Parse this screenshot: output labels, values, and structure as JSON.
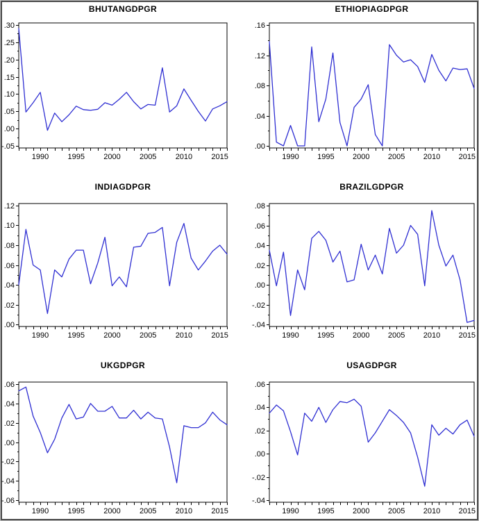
{
  "style": {
    "line_color": "#2e2ed2",
    "frame_color": "#000000",
    "text_color": "#000000",
    "background": "#ffffff",
    "outer_border_color": "#4b4b4b"
  },
  "chart_data": [
    {
      "type": "line",
      "title": "BHUTANGDPGR",
      "x_years": [
        1987,
        1988,
        1989,
        1990,
        1991,
        1992,
        1993,
        1994,
        1995,
        1996,
        1997,
        1998,
        1999,
        2000,
        2001,
        2002,
        2003,
        2004,
        2005,
        2006,
        2007,
        2008,
        2009,
        2010,
        2011,
        2012,
        2013,
        2014,
        2015,
        2016
      ],
      "values": [
        0.29,
        0.048,
        0.075,
        0.105,
        -0.005,
        0.045,
        0.02,
        0.04,
        0.065,
        0.055,
        0.053,
        0.056,
        0.075,
        0.068,
        0.085,
        0.105,
        0.078,
        0.057,
        0.07,
        0.068,
        0.176,
        0.048,
        0.066,
        0.115,
        0.082,
        0.05,
        0.022,
        0.057,
        0.066,
        0.078
      ],
      "xlim": [
        1987,
        2016
      ],
      "ylim": [
        -0.05,
        0.3
      ],
      "ytick_labels": [
        ".30",
        ".25",
        ".20",
        ".15",
        ".10",
        ".05",
        ".00",
        "-.05"
      ],
      "ytick_values": [
        0.3,
        0.25,
        0.2,
        0.15,
        0.1,
        0.05,
        0.0,
        -0.05
      ],
      "xtick_labels": [
        "1990",
        "1995",
        "2000",
        "2005",
        "2010",
        "2015"
      ],
      "xtick_values": [
        1990,
        1995,
        2000,
        2005,
        2010,
        2015
      ],
      "grid": false,
      "legend": "none"
    },
    {
      "type": "line",
      "title": "ETHIOPIAGDPGR",
      "x_years": [
        1987,
        1988,
        1989,
        1990,
        1991,
        1992,
        1993,
        1994,
        1995,
        1996,
        1997,
        1998,
        1999,
        2000,
        2001,
        2002,
        2003,
        2004,
        2005,
        2006,
        2007,
        2008,
        2009,
        2010,
        2011,
        2012,
        2013,
        2014,
        2015,
        2016
      ],
      "values": [
        0.138,
        0.005,
        0.0,
        0.027,
        0.0,
        0.0,
        0.131,
        0.032,
        0.062,
        0.123,
        0.031,
        0.0,
        0.051,
        0.062,
        0.081,
        0.015,
        0.0,
        0.134,
        0.12,
        0.111,
        0.114,
        0.105,
        0.084,
        0.121,
        0.1,
        0.086,
        0.103,
        0.101,
        0.102,
        0.076
      ],
      "xlim": [
        1987,
        2016
      ],
      "ylim": [
        0.0,
        0.16
      ],
      "ytick_labels": [
        ".16",
        ".12",
        ".08",
        ".04",
        ".00"
      ],
      "ytick_values": [
        0.16,
        0.12,
        0.08,
        0.04,
        0.0
      ],
      "xtick_labels": [
        "1990",
        "1995",
        "2000",
        "2005",
        "2010",
        "2015"
      ],
      "xtick_values": [
        1990,
        1995,
        2000,
        2005,
        2010,
        2015
      ],
      "grid": false,
      "legend": "none"
    },
    {
      "type": "line",
      "title": "INDIAGDPGR",
      "x_years": [
        1987,
        1988,
        1989,
        1990,
        1991,
        1992,
        1993,
        1994,
        1995,
        1996,
        1997,
        1998,
        1999,
        2000,
        2001,
        2002,
        2003,
        2004,
        2005,
        2006,
        2007,
        2008,
        2009,
        2010,
        2011,
        2012,
        2013,
        2014,
        2015,
        2016
      ],
      "values": [
        0.04,
        0.096,
        0.06,
        0.055,
        0.011,
        0.055,
        0.048,
        0.066,
        0.075,
        0.075,
        0.041,
        0.062,
        0.088,
        0.039,
        0.048,
        0.038,
        0.078,
        0.079,
        0.092,
        0.093,
        0.098,
        0.039,
        0.083,
        0.102,
        0.067,
        0.055,
        0.064,
        0.074,
        0.08,
        0.071
      ],
      "xlim": [
        1987,
        2016
      ],
      "ylim": [
        0.0,
        0.12
      ],
      "ytick_labels": [
        ".12",
        ".10",
        ".08",
        ".06",
        ".04",
        ".02",
        ".00"
      ],
      "ytick_values": [
        0.12,
        0.1,
        0.08,
        0.06,
        0.04,
        0.02,
        0.0
      ],
      "xtick_labels": [
        "1990",
        "1995",
        "2000",
        "2005",
        "2010",
        "2015"
      ],
      "xtick_values": [
        1990,
        1995,
        2000,
        2005,
        2010,
        2015
      ],
      "grid": false,
      "legend": "none"
    },
    {
      "type": "line",
      "title": "BRAZILGDPGR",
      "x_years": [
        1987,
        1988,
        1989,
        1990,
        1991,
        1992,
        1993,
        1994,
        1995,
        1996,
        1997,
        1998,
        1999,
        2000,
        2001,
        2002,
        2003,
        2004,
        2005,
        2006,
        2007,
        2008,
        2009,
        2010,
        2011,
        2012,
        2013,
        2014,
        2015,
        2016
      ],
      "values": [
        0.035,
        -0.001,
        0.033,
        -0.031,
        0.015,
        -0.005,
        0.047,
        0.054,
        0.045,
        0.023,
        0.034,
        0.003,
        0.005,
        0.041,
        0.015,
        0.03,
        0.011,
        0.057,
        0.032,
        0.04,
        0.06,
        0.051,
        -0.001,
        0.075,
        0.04,
        0.019,
        0.03,
        0.005,
        -0.038,
        -0.036
      ],
      "xlim": [
        1987,
        2016
      ],
      "ylim": [
        -0.04,
        0.08
      ],
      "ytick_labels": [
        ".08",
        ".06",
        ".04",
        ".02",
        ".00",
        "-.02",
        "-.04"
      ],
      "ytick_values": [
        0.08,
        0.06,
        0.04,
        0.02,
        0.0,
        -0.02,
        -0.04
      ],
      "xtick_labels": [
        "1990",
        "1995",
        "2000",
        "2005",
        "2010",
        "2015"
      ],
      "xtick_values": [
        1990,
        1995,
        2000,
        2005,
        2010,
        2015
      ],
      "grid": false,
      "legend": "none"
    },
    {
      "type": "line",
      "title": "UKGDPGR",
      "x_years": [
        1987,
        1988,
        1989,
        1990,
        1991,
        1992,
        1993,
        1994,
        1995,
        1996,
        1997,
        1998,
        1999,
        2000,
        2001,
        2002,
        2003,
        2004,
        2005,
        2006,
        2007,
        2008,
        2009,
        2010,
        2011,
        2012,
        2013,
        2014,
        2015,
        2016
      ],
      "values": [
        0.053,
        0.057,
        0.027,
        0.01,
        -0.011,
        0.003,
        0.025,
        0.039,
        0.024,
        0.026,
        0.04,
        0.032,
        0.032,
        0.037,
        0.025,
        0.025,
        0.033,
        0.024,
        0.031,
        0.025,
        0.024,
        -0.005,
        -0.042,
        0.017,
        0.015,
        0.015,
        0.02,
        0.031,
        0.023,
        0.018
      ],
      "xlim": [
        1987,
        2016
      ],
      "ylim": [
        -0.06,
        0.06
      ],
      "ytick_labels": [
        ".06",
        ".04",
        ".02",
        ".00",
        "-.02",
        "-.04",
        "-.06"
      ],
      "ytick_values": [
        0.06,
        0.04,
        0.02,
        0.0,
        -0.02,
        -0.04,
        -0.06
      ],
      "xtick_labels": [
        "1990",
        "1995",
        "2000",
        "2005",
        "2010",
        "2015"
      ],
      "xtick_values": [
        1990,
        1995,
        2000,
        2005,
        2010,
        2015
      ],
      "grid": false,
      "legend": "none"
    },
    {
      "type": "line",
      "title": "USAGDPGR",
      "x_years": [
        1987,
        1988,
        1989,
        1990,
        1991,
        1992,
        1993,
        1994,
        1995,
        1996,
        1997,
        1998,
        1999,
        2000,
        2001,
        2002,
        2003,
        2004,
        2005,
        2006,
        2007,
        2008,
        2009,
        2010,
        2011,
        2012,
        2013,
        2014,
        2015,
        2016
      ],
      "values": [
        0.035,
        0.042,
        0.037,
        0.019,
        -0.001,
        0.035,
        0.028,
        0.04,
        0.027,
        0.038,
        0.045,
        0.044,
        0.047,
        0.041,
        0.01,
        0.018,
        0.028,
        0.038,
        0.033,
        0.027,
        0.018,
        -0.003,
        -0.028,
        0.025,
        0.016,
        0.022,
        0.017,
        0.025,
        0.029,
        0.015
      ],
      "xlim": [
        1987,
        2016
      ],
      "ylim": [
        -0.04,
        0.06
      ],
      "ytick_labels": [
        ".06",
        ".04",
        ".02",
        ".00",
        "-.02",
        "-.04"
      ],
      "ytick_values": [
        0.06,
        0.04,
        0.02,
        0.0,
        -0.02,
        -0.04
      ],
      "xtick_labels": [
        "1990",
        "1995",
        "2000",
        "2005",
        "2010",
        "2015"
      ],
      "xtick_values": [
        1990,
        1995,
        2000,
        2005,
        2010,
        2015
      ],
      "grid": false,
      "legend": "none"
    }
  ]
}
